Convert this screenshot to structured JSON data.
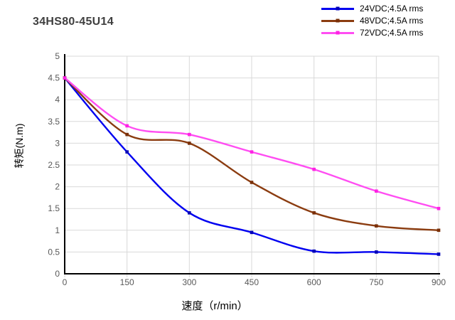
{
  "title": "34HS80-45U14",
  "chart_data": {
    "type": "line",
    "title": "34HS80-45U14",
    "xlabel": "速度（r/min）",
    "ylabel": "转矩(N.m)",
    "x": [
      0,
      150,
      300,
      450,
      600,
      750,
      900
    ],
    "series": [
      {
        "name": "24VDC;4.5A rms",
        "color": "#0000f0",
        "marker_color": "#0000b8",
        "values": [
          4.5,
          2.8,
          1.4,
          0.95,
          0.52,
          0.5,
          0.45
        ]
      },
      {
        "name": "48VDC;4.5A rms",
        "color": "#8b3c10",
        "marker_color": "#7a3009",
        "values": [
          4.5,
          3.2,
          3.0,
          2.1,
          1.4,
          1.1,
          1.0
        ]
      },
      {
        "name": "72VDC;4.5A rms",
        "color": "#ff4df2",
        "marker_color": "#ff22e4",
        "values": [
          4.5,
          3.4,
          3.2,
          2.8,
          2.4,
          1.9,
          1.5
        ]
      }
    ],
    "x_ticks": [
      0,
      150,
      300,
      450,
      600,
      750,
      900
    ],
    "y_ticks": [
      0,
      0.5,
      1,
      1.5,
      2,
      2.5,
      3,
      3.5,
      4,
      4.5,
      5
    ],
    "xlim": [
      0,
      900
    ],
    "ylim": [
      0,
      5
    ],
    "grid": true,
    "legend_position": "top-right"
  },
  "style": {
    "grid_color": "#d9d9d9",
    "axis_color": "#000000",
    "tick_label_color": "#595959",
    "title_color": "#3f3f3f",
    "text_color": "#000000"
  }
}
